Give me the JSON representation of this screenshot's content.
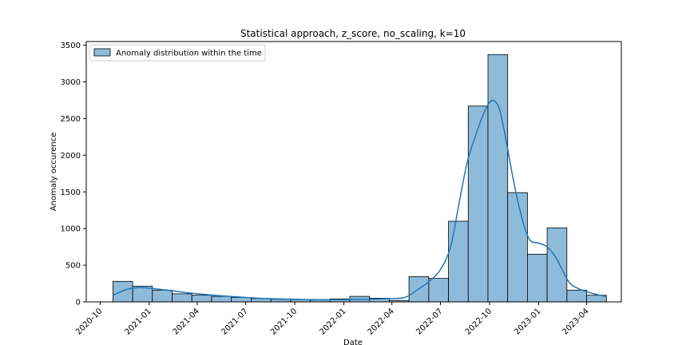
{
  "chart_data": {
    "type": "bar",
    "title": "Statistical approach, z_score, no_scaling, k=10",
    "xlabel": "Date",
    "ylabel": "Anomaly occurence",
    "legend": {
      "label": "Anomaly distribution within the time",
      "placement": "top-left"
    },
    "bar_color": "#8fbbdb",
    "line_color": "#1f77b4",
    "xlim": [
      "2020-09-05",
      "2023-06-05"
    ],
    "ylim": [
      0,
      3550
    ],
    "x_ticks": [
      "2020-10",
      "2021-01",
      "2021-04",
      "2021-07",
      "2021-10",
      "2022-01",
      "2022-04",
      "2022-07",
      "2022-10",
      "2023-01",
      "2023-04"
    ],
    "y_ticks": [
      0,
      500,
      1000,
      1500,
      2000,
      2500,
      3000,
      3500
    ],
    "grid": false,
    "bins": [
      {
        "start": "2020-10-25",
        "end": "2020-12-01",
        "value": 280
      },
      {
        "start": "2020-12-01",
        "end": "2021-01-07",
        "value": 215
      },
      {
        "start": "2021-01-07",
        "end": "2021-02-13",
        "value": 160
      },
      {
        "start": "2021-02-13",
        "end": "2021-03-22",
        "value": 110
      },
      {
        "start": "2021-03-22",
        "end": "2021-04-28",
        "value": 90
      },
      {
        "start": "2021-04-28",
        "end": "2021-06-04",
        "value": 75
      },
      {
        "start": "2021-06-04",
        "end": "2021-07-11",
        "value": 60
      },
      {
        "start": "2021-07-11",
        "end": "2021-08-17",
        "value": 45
      },
      {
        "start": "2021-08-17",
        "end": "2021-09-23",
        "value": 35
      },
      {
        "start": "2021-09-23",
        "end": "2021-10-30",
        "value": 30
      },
      {
        "start": "2021-10-30",
        "end": "2021-12-06",
        "value": 25
      },
      {
        "start": "2021-12-06",
        "end": "2022-01-12",
        "value": 40
      },
      {
        "start": "2022-01-12",
        "end": "2022-02-18",
        "value": 75
      },
      {
        "start": "2022-02-18",
        "end": "2022-03-27",
        "value": 50
      },
      {
        "start": "2022-03-27",
        "end": "2022-05-03",
        "value": 20
      },
      {
        "start": "2022-05-03",
        "end": "2022-06-09",
        "value": 345
      },
      {
        "start": "2022-06-09",
        "end": "2022-07-16",
        "value": 320
      },
      {
        "start": "2022-07-16",
        "end": "2022-08-22",
        "value": 1100
      },
      {
        "start": "2022-08-22",
        "end": "2022-09-28",
        "value": 2670
      },
      {
        "start": "2022-09-28",
        "end": "2022-11-04",
        "value": 3370
      },
      {
        "start": "2022-11-04",
        "end": "2022-12-11",
        "value": 1490
      },
      {
        "start": "2022-12-11",
        "end": "2023-01-17",
        "value": 650
      },
      {
        "start": "2023-01-17",
        "end": "2023-02-23",
        "value": 1010
      },
      {
        "start": "2023-02-23",
        "end": "2023-04-01",
        "value": 160
      },
      {
        "start": "2023-04-01",
        "end": "2023-05-08",
        "value": 90
      }
    ],
    "kde": {
      "x": [
        "2020-10-25",
        "2020-11-20",
        "2020-12-15",
        "2021-01-10",
        "2021-02-15",
        "2021-03-20",
        "2021-04-25",
        "2021-06-01",
        "2021-07-10",
        "2021-08-20",
        "2021-10-01",
        "2021-11-15",
        "2022-01-01",
        "2022-02-15",
        "2022-03-25",
        "2022-04-25",
        "2022-05-20",
        "2022-06-10",
        "2022-07-01",
        "2022-07-20",
        "2022-08-05",
        "2022-08-20",
        "2022-09-05",
        "2022-09-20",
        "2022-10-01",
        "2022-10-10",
        "2022-10-20",
        "2022-11-01",
        "2022-11-15",
        "2022-12-01",
        "2022-12-15",
        "2023-01-01",
        "2023-01-15",
        "2023-02-01",
        "2023-02-15",
        "2023-03-01",
        "2023-03-20",
        "2023-04-10",
        "2023-05-08"
      ],
      "y": [
        90,
        170,
        195,
        180,
        150,
        120,
        95,
        75,
        55,
        42,
        35,
        30,
        30,
        35,
        45,
        60,
        170,
        280,
        440,
        750,
        1350,
        1900,
        2270,
        2570,
        2720,
        2740,
        2620,
        2200,
        1650,
        1130,
        850,
        800,
        760,
        620,
        430,
        250,
        170,
        120,
        70
      ]
    }
  }
}
